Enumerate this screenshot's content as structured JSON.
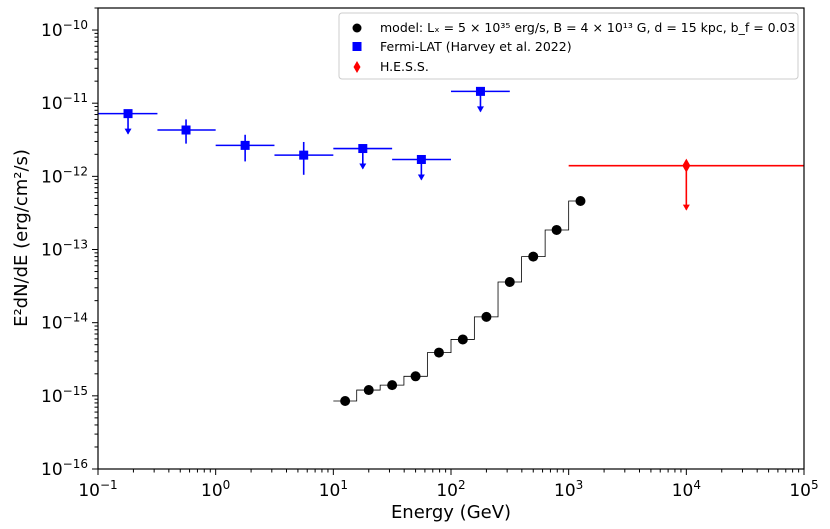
{
  "chart_data": {
    "type": "scatter",
    "xlabel": "Energy (GeV)",
    "ylabel": "E²dN/dE (erg/cm²/s)",
    "x_scale": "log",
    "y_scale": "log",
    "xlim": [
      0.1,
      100000
    ],
    "ylim": [
      1e-16,
      2e-10
    ],
    "legend_placement": "top-right",
    "x_ticks": [
      {
        "value": 0.1,
        "base": "10",
        "exp": "−1"
      },
      {
        "value": 1,
        "base": "10",
        "exp": "0"
      },
      {
        "value": 10,
        "base": "10",
        "exp": "1"
      },
      {
        "value": 100,
        "base": "10",
        "exp": "2"
      },
      {
        "value": 1000,
        "base": "10",
        "exp": "3"
      },
      {
        "value": 10000,
        "base": "10",
        "exp": "4"
      },
      {
        "value": 100000,
        "base": "10",
        "exp": "5"
      }
    ],
    "y_ticks": [
      {
        "value": 1e-16,
        "base": "10",
        "exp": "−16"
      },
      {
        "value": 1e-15,
        "base": "10",
        "exp": "−15"
      },
      {
        "value": 1e-14,
        "base": "10",
        "exp": "−14"
      },
      {
        "value": 1e-13,
        "base": "10",
        "exp": "−13"
      },
      {
        "value": 1e-12,
        "base": "10",
        "exp": "−12"
      },
      {
        "value": 1e-11,
        "base": "10",
        "exp": "−11"
      },
      {
        "value": 1e-10,
        "base": "10",
        "exp": "−10"
      }
    ],
    "series": [
      {
        "name": "model: Lₓ = 5 × 10³⁵ erg/s, B = 4 × 10¹³ G, d = 15 kpc, b_f = 0.03",
        "color": "#000000",
        "marker": "circle",
        "points": [
          {
            "x": 12.6,
            "y": 8.5e-16
          },
          {
            "x": 20,
            "y": 1.2e-15
          },
          {
            "x": 31.6,
            "y": 1.4e-15
          },
          {
            "x": 50,
            "y": 1.85e-15
          },
          {
            "x": 79,
            "y": 3.9e-15
          },
          {
            "x": 126,
            "y": 5.9e-15
          },
          {
            "x": 200,
            "y": 1.2e-14
          },
          {
            "x": 316,
            "y": 3.6e-14
          },
          {
            "x": 500,
            "y": 8e-14
          },
          {
            "x": 790,
            "y": 1.85e-13
          },
          {
            "x": 1260,
            "y": 4.6e-13
          }
        ],
        "step_edges": [
          10,
          15.8,
          25,
          39.8,
          63,
          100,
          158,
          251,
          398,
          631,
          1000
        ]
      },
      {
        "name": "Fermi-LAT (Harvey et al. 2022)",
        "color": "#0000ff",
        "marker": "square",
        "points": [
          {
            "x": 0.18,
            "y": 7.2e-12,
            "xlo": 0.1,
            "xhi": 0.32,
            "upper_limit": true
          },
          {
            "x": 0.56,
            "y": 4.3e-12,
            "xlo": 0.32,
            "xhi": 1.0,
            "yerr_lo": 2.8e-12,
            "yerr_hi": 6e-12
          },
          {
            "x": 1.78,
            "y": 2.65e-12,
            "xlo": 1.0,
            "xhi": 3.16,
            "yerr_lo": 1.6e-12,
            "yerr_hi": 3.7e-12
          },
          {
            "x": 5.6,
            "y": 1.95e-12,
            "xlo": 3.16,
            "xhi": 10,
            "yerr_lo": 1.05e-12,
            "yerr_hi": 2.95e-12
          },
          {
            "x": 17.8,
            "y": 2.4e-12,
            "xlo": 10,
            "xhi": 31.6,
            "upper_limit": true
          },
          {
            "x": 56,
            "y": 1.7e-12,
            "xlo": 31.6,
            "xhi": 100,
            "upper_limit": true
          },
          {
            "x": 178,
            "y": 1.45e-11,
            "xlo": 100,
            "xhi": 316,
            "upper_limit": true
          }
        ]
      },
      {
        "name": "H.E.S.S.",
        "color": "#ff0000",
        "marker": "diamond",
        "points": [
          {
            "x": 10000,
            "y": 1.4e-12,
            "xlo": 1000,
            "xhi": 100000,
            "upper_limit": true
          }
        ]
      }
    ]
  }
}
